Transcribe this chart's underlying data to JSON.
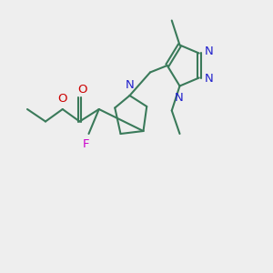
{
  "bg_color": "#eeeeee",
  "bond_color": "#3a7a5a",
  "bond_lw": 1.5,
  "N_color": "#2222cc",
  "O_color": "#cc0000",
  "F_color": "#cc00cc",
  "text_fontsize": 9.5,
  "fig_w": 3.0,
  "fig_h": 3.0,
  "dpi": 100,
  "xlim": [
    0,
    12
  ],
  "ylim": [
    0,
    10
  ]
}
